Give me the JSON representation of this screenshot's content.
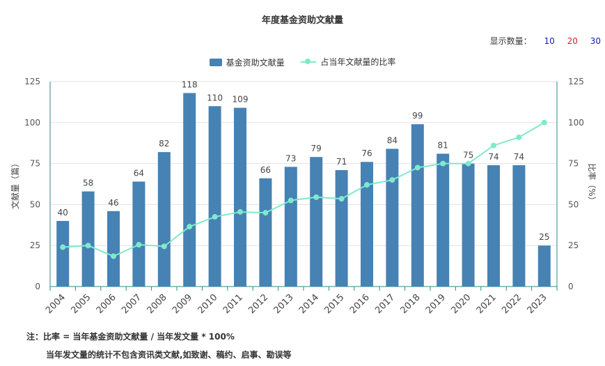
{
  "title": "年度基金资助文献量",
  "display_count": {
    "label": "显示数量：",
    "options": [
      {
        "label": "10",
        "color": "#1a1aaa"
      },
      {
        "label": "20",
        "color": "#d42020"
      },
      {
        "label": "30",
        "color": "#1a1aaa"
      }
    ]
  },
  "legend": {
    "bar": "基金资助文献量",
    "line": "占当年文献量的比率"
  },
  "notes": {
    "prefix": "注：",
    "line1": "比率 = 当年基金资助文献量 / 当年发文量 * 100%",
    "line2": "当年发文量的统计不包含资讯类文献,如致谢、稿约、启事、勘误等"
  },
  "chart_data": {
    "type": "bar",
    "categories": [
      "2004",
      "2005",
      "2006",
      "2007",
      "2008",
      "2009",
      "2010",
      "2011",
      "2012",
      "2013",
      "2014",
      "2015",
      "2016",
      "2017",
      "2018",
      "2019",
      "2020",
      "2021",
      "2022",
      "2023"
    ],
    "series": [
      {
        "name": "基金资助文献量",
        "type": "bar",
        "color": "#4682b4",
        "values": [
          40,
          58,
          46,
          64,
          82,
          118,
          110,
          109,
          66,
          73,
          79,
          71,
          76,
          84,
          99,
          81,
          75,
          74,
          74,
          25
        ]
      },
      {
        "name": "占当年文献量的比率",
        "type": "line",
        "color": "#7feacb",
        "values": [
          24,
          25,
          18.5,
          25.5,
          24.5,
          36.5,
          42.5,
          45.5,
          45,
          52.5,
          54.5,
          53.5,
          62,
          65,
          72.5,
          75,
          75,
          86,
          91,
          100
        ]
      }
    ],
    "ylabel_left": "文献量（篇）",
    "ylabel_right": "比率（%）",
    "ylim_left": [
      0,
      125
    ],
    "ylim_right": [
      0,
      125
    ],
    "yticks": [
      0,
      25,
      50,
      75,
      100,
      125
    ],
    "grid": true,
    "legend_position": "top-center"
  }
}
